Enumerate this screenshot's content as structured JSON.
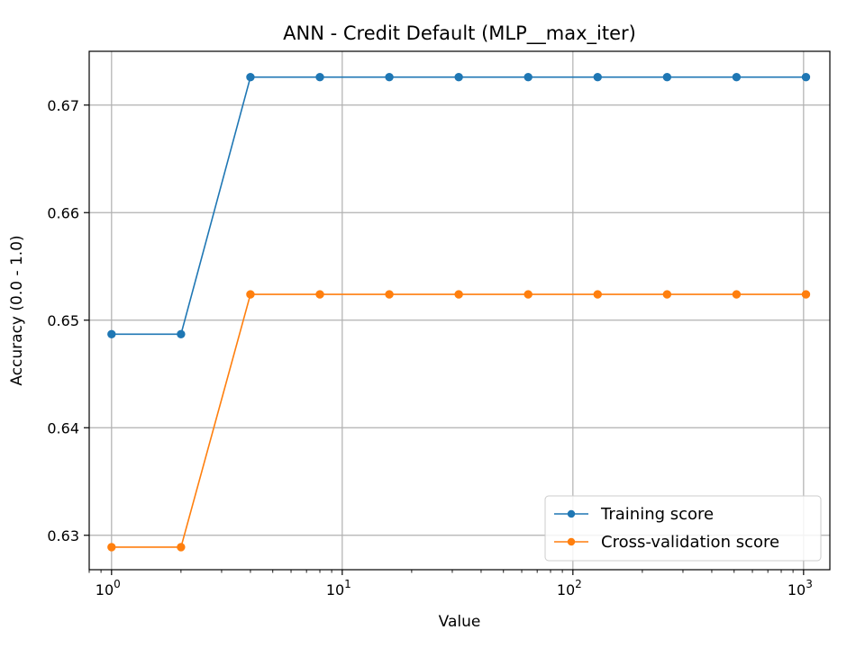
{
  "chart_data": {
    "type": "line",
    "title": "ANN - Credit Default (MLP__max_iter)",
    "xlabel": "Value",
    "ylabel": "Accuracy (0.0 - 1.0)",
    "xscale": "log",
    "xlim": [
      0.8,
      1300
    ],
    "ylim": [
      0.6268,
      0.675
    ],
    "grid": true,
    "legend_position": "bottom-right",
    "x": [
      1,
      2,
      4,
      8,
      16,
      32,
      64,
      128,
      256,
      512,
      1024
    ],
    "x_ticks": [
      1,
      10,
      100,
      1000
    ],
    "x_tick_labels": [
      {
        "base": "10",
        "exp": "0"
      },
      {
        "base": "10",
        "exp": "1"
      },
      {
        "base": "10",
        "exp": "2"
      },
      {
        "base": "10",
        "exp": "3"
      }
    ],
    "y_ticks": [
      0.63,
      0.64,
      0.65,
      0.66,
      0.67
    ],
    "y_tick_labels": [
      "0.63",
      "0.64",
      "0.65",
      "0.66",
      "0.67"
    ],
    "series": [
      {
        "name": "Training score",
        "color": "#1f77b4",
        "values": [
          0.6487,
          0.6487,
          0.6726,
          0.6726,
          0.6726,
          0.6726,
          0.6726,
          0.6726,
          0.6726,
          0.6726,
          0.6726
        ]
      },
      {
        "name": "Cross-validation score",
        "color": "#ff7f0e",
        "values": [
          0.6289,
          0.6289,
          0.6524,
          0.6524,
          0.6524,
          0.6524,
          0.6524,
          0.6524,
          0.6524,
          0.6524,
          0.6524
        ]
      }
    ]
  }
}
